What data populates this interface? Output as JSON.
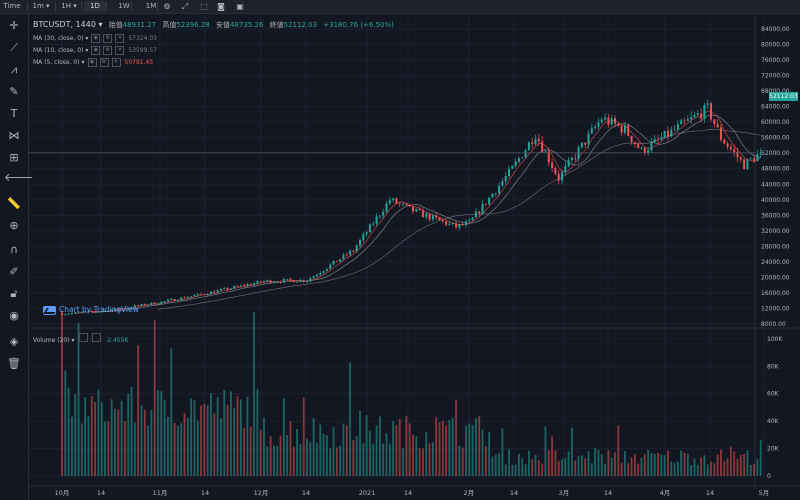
{
  "topbar": {
    "items": [
      {
        "label": "Time",
        "x": 1
      },
      {
        "label": "1m ▾",
        "x": 30
      },
      {
        "label": "1H ▾",
        "x": 58
      },
      {
        "label": "1D",
        "x": 84,
        "active": true
      },
      {
        "label": "1W",
        "x": 113
      },
      {
        "label": "1M",
        "x": 140
      }
    ],
    "icons": [
      "gear-icon",
      "expand-icon",
      "screenshot-icon",
      "camera-icon",
      "save-icon"
    ]
  },
  "legend": {
    "symbol": "BTCUSDT, 1440",
    "open_label": "始值",
    "open": "48931.27",
    "high_label": "高值",
    "high": "52396.28",
    "low_label": "安值",
    "low": "48735.26",
    "close_label": "終値",
    "close": "52112.03",
    "change": "+3180.76 (+6.50%)"
  },
  "indicators": [
    {
      "label": "MA (30, close, 0)",
      "value": "57324.03",
      "color": "#787b86"
    },
    {
      "label": "MA (10, close, 0)",
      "value": "53599.57",
      "color": "#787b86"
    },
    {
      "label": "MA (5, close, 0)",
      "value": "50781.45",
      "color": "#ef5350"
    }
  ],
  "volume_legend": {
    "label": "Volume (20)",
    "value": "2.455K"
  },
  "brand": "Chart by TradingView",
  "current_price": "52112.03",
  "colors": {
    "up": "#26a69a",
    "down": "#ef5350",
    "bg": "#131722",
    "grid": "#1c2030",
    "text": "#b2b5be"
  },
  "chart_data": [
    {
      "type": "candlestick",
      "title": "BTCUSDT, 1440",
      "y_ticks": [
        "84000.00",
        "80000.00",
        "76000.00",
        "72000.00",
        "68000.00",
        "64000.00",
        "60000.00",
        "56000.00",
        "52000.00",
        "48000.00",
        "44000.00",
        "40000.00",
        "36000.00",
        "32000.00",
        "28000.00",
        "24000.00",
        "20000.00",
        "16000.00",
        "12000.00",
        "8000.00"
      ],
      "ylim": [
        8000,
        84000
      ],
      "x_ticks": [
        "10月",
        "14",
        "11月",
        "14",
        "12月",
        "14",
        "2021",
        "14",
        "2月",
        "14",
        "3月",
        "14",
        "4月",
        "14",
        "5月"
      ],
      "approx_close_path": [
        {
          "date": "2020-10-01",
          "close": 10600
        },
        {
          "date": "2020-10-14",
          "close": 11400
        },
        {
          "date": "2020-11-01",
          "close": 13800
        },
        {
          "date": "2020-11-14",
          "close": 16000
        },
        {
          "date": "2020-12-01",
          "close": 19000
        },
        {
          "date": "2020-12-14",
          "close": 19300
        },
        {
          "date": "2020-12-28",
          "close": 27000
        },
        {
          "date": "2021-01-08",
          "close": 40000
        },
        {
          "date": "2021-01-14",
          "close": 37500
        },
        {
          "date": "2021-01-28",
          "close": 33000
        },
        {
          "date": "2021-02-01",
          "close": 34000
        },
        {
          "date": "2021-02-14",
          "close": 48000
        },
        {
          "date": "2021-02-21",
          "close": 57000
        },
        {
          "date": "2021-02-28",
          "close": 45500
        },
        {
          "date": "2021-03-13",
          "close": 61000
        },
        {
          "date": "2021-03-20",
          "close": 58000
        },
        {
          "date": "2021-03-25",
          "close": 52500
        },
        {
          "date": "2021-04-14",
          "close": 63500
        },
        {
          "date": "2021-04-18",
          "close": 56000
        },
        {
          "date": "2021-04-25",
          "close": 49000
        },
        {
          "date": "2021-04-30",
          "close": 52112.03
        }
      ],
      "moving_averages": [
        {
          "name": "MA (30, close, 0)",
          "last": 57324.03
        },
        {
          "name": "MA (10, close, 0)",
          "last": 53599.57
        },
        {
          "name": "MA (5, close, 0)",
          "last": 50781.45
        }
      ]
    },
    {
      "type": "bar",
      "title": "Volume (20)",
      "y_ticks": [
        "100K",
        "80K",
        "60K",
        "40K",
        "20K",
        "0"
      ],
      "ylim": [
        0,
        105000
      ],
      "last_value": "2.455K"
    }
  ]
}
